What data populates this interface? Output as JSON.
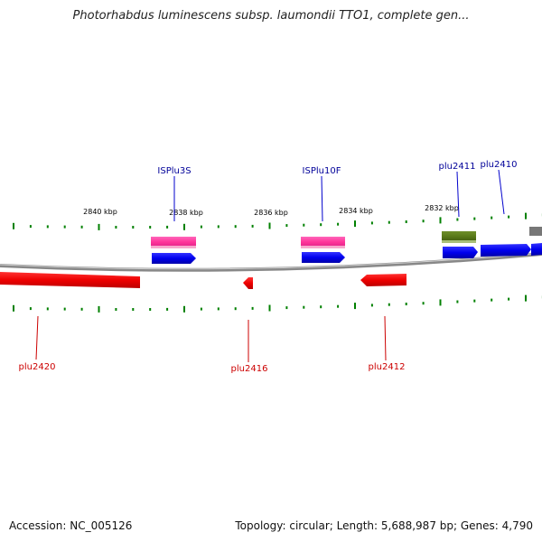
{
  "title": "Photorhabdus luminescens subsp. laumondii TTO1, complete gen...",
  "colors": {
    "forward_feature": "#0000ff",
    "reverse_feature": "#ff0000",
    "mobile_element": "#ff3399",
    "rrna_feature": "#5a7a1a",
    "tick": "#008000",
    "backbone": "#888888"
  },
  "ruler": [
    {
      "label": "2840 kbp",
      "kbp": 2840
    },
    {
      "label": "2838 kbp",
      "kbp": 2838
    },
    {
      "label": "2836 kbp",
      "kbp": 2836
    },
    {
      "label": "2834 kbp",
      "kbp": 2834
    },
    {
      "label": "2832 kbp",
      "kbp": 2832
    }
  ],
  "features": [
    {
      "name": "ISPlu3S",
      "strand": "forward",
      "kind": "mobile_element",
      "label_color": "#000099"
    },
    {
      "name": "ISPlu10F",
      "strand": "forward",
      "kind": "mobile_element",
      "label_color": "#000099"
    },
    {
      "name": "plu2411",
      "strand": "forward",
      "kind": "gene",
      "label_color": "#000099"
    },
    {
      "name": "plu2410",
      "strand": "forward",
      "kind": "gene",
      "label_color": "#000099"
    },
    {
      "name": "plu2420",
      "strand": "reverse",
      "kind": "gene",
      "label_color": "#cc0000"
    },
    {
      "name": "plu2416",
      "strand": "reverse",
      "kind": "gene",
      "label_color": "#cc0000"
    },
    {
      "name": "plu2412",
      "strand": "reverse",
      "kind": "gene",
      "label_color": "#cc0000"
    }
  ],
  "footer": {
    "accession": "Accession: NC_005126",
    "summary": "Topology: circular; Length: 5,688,987 bp; Genes: 4,790"
  }
}
